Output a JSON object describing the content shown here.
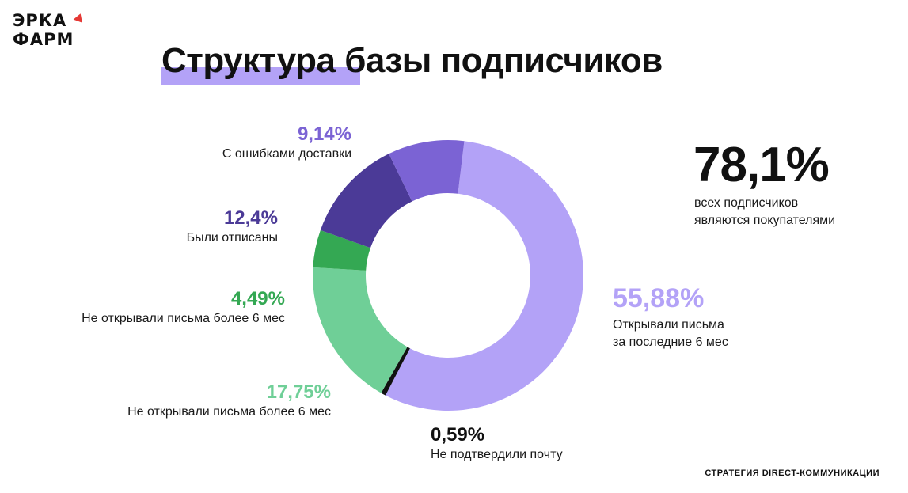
{
  "brand": {
    "line1": "ЭРКА",
    "line2": "ФАРМ",
    "accent": "#e53935"
  },
  "title": "Структура базы подписчиков",
  "summary": {
    "value": "78,1%",
    "text_line1": "всех подписчиков",
    "text_line2": "являются покупателями"
  },
  "footer": "СТРАТЕГИЯ DIRECT-КОММУНИКАЦИИ",
  "chart_data": {
    "type": "pie",
    "donut": true,
    "title": "Структура базы подписчиков",
    "slices": [
      {
        "id": "opened",
        "value": 55.88,
        "pct_label": "55,88%",
        "label_line1": "Открывали письма",
        "label_line2": "за последние 6 мес",
        "color": "#b3a2f7"
      },
      {
        "id": "unconfirmed",
        "value": 0.59,
        "pct_label": "0,59%",
        "label_line1": "Не подтвердили почту",
        "label_line2": "",
        "color": "#111111"
      },
      {
        "id": "not-opened-1775",
        "value": 17.75,
        "pct_label": "17,75%",
        "label_line1": "Не открывали письма более 6 мес",
        "label_line2": "",
        "color": "#6fcf97"
      },
      {
        "id": "not-opened-449",
        "value": 4.49,
        "pct_label": "4,49%",
        "label_line1": "Не открывали письма более 6 мес",
        "label_line2": "",
        "color": "#34a853"
      },
      {
        "id": "unsubscribed",
        "value": 12.4,
        "pct_label": "12,4%",
        "label_line1": "Были отписаны",
        "label_line2": "",
        "color": "#4b3a97"
      },
      {
        "id": "delivery-errors",
        "value": 9.14,
        "pct_label": "9,14%",
        "label_line1": "С ошибками доставки",
        "label_line2": "",
        "color": "#7b63d4"
      }
    ]
  }
}
